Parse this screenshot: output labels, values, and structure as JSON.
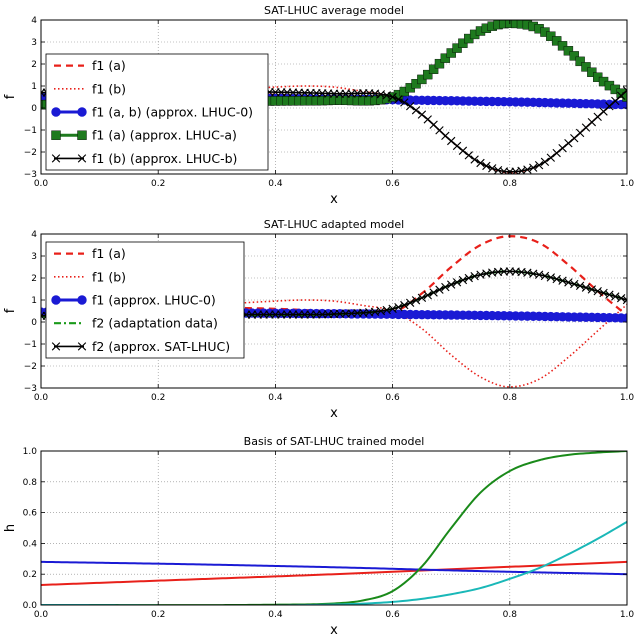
{
  "chart_data": [
    {
      "type": "line",
      "title": "SAT-LHUC average model",
      "xlabel": "x",
      "ylabel": "f",
      "xlim": [
        0,
        1
      ],
      "ylim": [
        -3,
        4
      ],
      "xticks": [
        "0.0",
        "0.2",
        "0.4",
        "0.6",
        "0.8",
        "1.0"
      ],
      "yticks": [
        "−3",
        "−2",
        "−1",
        "0",
        "1",
        "2",
        "3",
        "4"
      ],
      "grid": true,
      "legend_position": "upper-left",
      "series": [
        {
          "name": "f1 (a)",
          "color": "#e8201a",
          "style": "dashed",
          "x": [
            0,
            0.1,
            0.2,
            0.3,
            0.4,
            0.5,
            0.6,
            0.65,
            0.7,
            0.75,
            0.8,
            0.85,
            0.9,
            0.95,
            1.0
          ],
          "y": [
            0.4,
            0.5,
            0.6,
            0.65,
            0.6,
            0.5,
            0.5,
            1.3,
            2.5,
            3.5,
            3.9,
            3.6,
            2.6,
            1.4,
            0.3
          ]
        },
        {
          "name": "f1 (b)",
          "color": "#e8201a",
          "style": "dotted",
          "x": [
            0,
            0.1,
            0.2,
            0.3,
            0.4,
            0.45,
            0.5,
            0.55,
            0.6,
            0.65,
            0.7,
            0.75,
            0.8,
            0.85,
            0.9,
            0.95,
            1.0
          ],
          "y": [
            0.4,
            0.5,
            0.65,
            0.8,
            0.95,
            1.0,
            0.95,
            0.75,
            0.5,
            -0.3,
            -1.5,
            -2.5,
            -2.95,
            -2.6,
            -1.6,
            -0.4,
            0.8
          ]
        },
        {
          "name": "f1 (a, b) (approx. LHUC-0)",
          "color": "#1a1ad4",
          "style": "circle",
          "x": [
            0,
            0.2,
            0.4,
            0.6,
            0.8,
            1.0
          ],
          "y": [
            0.5,
            0.47,
            0.43,
            0.37,
            0.28,
            0.15
          ]
        },
        {
          "name": "f1 (a) (approx. LHUC-a)",
          "color": "#1e7a1e",
          "style": "square",
          "x": [
            0,
            0.1,
            0.2,
            0.3,
            0.4,
            0.5,
            0.6,
            0.65,
            0.7,
            0.75,
            0.8,
            0.85,
            0.9,
            0.95,
            1.0
          ],
          "y": [
            0.15,
            0.2,
            0.25,
            0.3,
            0.32,
            0.35,
            0.5,
            1.3,
            2.5,
            3.5,
            3.85,
            3.6,
            2.6,
            1.4,
            0.5
          ]
        },
        {
          "name": "f1 (b) (approx. LHUC-b)",
          "color": "#000000",
          "style": "cross",
          "x": [
            0,
            0.1,
            0.2,
            0.3,
            0.4,
            0.5,
            0.6,
            0.65,
            0.7,
            0.75,
            0.8,
            0.85,
            0.9,
            0.95,
            1.0
          ],
          "y": [
            0.7,
            0.72,
            0.75,
            0.75,
            0.72,
            0.65,
            0.5,
            -0.3,
            -1.5,
            -2.5,
            -2.9,
            -2.6,
            -1.6,
            -0.4,
            0.8
          ]
        }
      ]
    },
    {
      "type": "line",
      "title": "SAT-LHUC adapted model",
      "xlabel": "x",
      "ylabel": "f",
      "xlim": [
        0,
        1
      ],
      "ylim": [
        -3,
        4
      ],
      "xticks": [
        "0.0",
        "0.2",
        "0.4",
        "0.6",
        "0.8",
        "1.0"
      ],
      "yticks": [
        "−3",
        "−2",
        "−1",
        "0",
        "1",
        "2",
        "3",
        "4"
      ],
      "grid": true,
      "legend_position": "upper-left",
      "series": [
        {
          "name": "f1 (a)",
          "color": "#e8201a",
          "style": "dashed",
          "x": [
            0,
            0.1,
            0.2,
            0.3,
            0.4,
            0.5,
            0.6,
            0.65,
            0.7,
            0.75,
            0.8,
            0.85,
            0.9,
            0.95,
            1.0
          ],
          "y": [
            0.4,
            0.5,
            0.6,
            0.65,
            0.6,
            0.5,
            0.5,
            1.3,
            2.5,
            3.5,
            3.9,
            3.6,
            2.6,
            1.4,
            0.3
          ]
        },
        {
          "name": "f1 (b)",
          "color": "#e8201a",
          "style": "dotted",
          "x": [
            0,
            0.1,
            0.2,
            0.3,
            0.4,
            0.45,
            0.5,
            0.55,
            0.6,
            0.65,
            0.7,
            0.75,
            0.8,
            0.85,
            0.9,
            0.95,
            1.0
          ],
          "y": [
            0.4,
            0.5,
            0.65,
            0.8,
            0.95,
            1.0,
            0.95,
            0.75,
            0.5,
            -0.3,
            -1.5,
            -2.5,
            -2.95,
            -2.6,
            -1.6,
            -0.4,
            0.8
          ]
        },
        {
          "name": "f1 (approx. LHUC-0)",
          "color": "#1a1ad4",
          "style": "circle",
          "x": [
            0,
            0.2,
            0.4,
            0.6,
            0.8,
            1.0
          ],
          "y": [
            0.45,
            0.43,
            0.4,
            0.35,
            0.28,
            0.18
          ]
        },
        {
          "name": "f2 (adaptation data)",
          "color": "#1a9a1a",
          "style": "dashdot",
          "x": [
            0,
            0.1,
            0.2,
            0.3,
            0.4,
            0.5,
            0.6,
            0.65,
            0.7,
            0.75,
            0.8,
            0.85,
            0.9,
            0.95,
            1.0
          ],
          "y": [
            0.25,
            0.27,
            0.3,
            0.3,
            0.32,
            0.35,
            0.6,
            1.1,
            1.7,
            2.15,
            2.3,
            2.15,
            1.8,
            1.4,
            1.0
          ]
        },
        {
          "name": "f2 (approx. SAT-LHUC)",
          "color": "#000000",
          "style": "cross",
          "x": [
            0,
            0.1,
            0.2,
            0.3,
            0.4,
            0.5,
            0.6,
            0.65,
            0.7,
            0.75,
            0.8,
            0.85,
            0.9,
            0.95,
            1.0
          ],
          "y": [
            0.28,
            0.3,
            0.32,
            0.33,
            0.34,
            0.36,
            0.6,
            1.1,
            1.7,
            2.15,
            2.3,
            2.15,
            1.8,
            1.4,
            1.0
          ]
        }
      ]
    },
    {
      "type": "line",
      "title": "Basis of SAT-LHUC trained model",
      "xlabel": "x",
      "ylabel": "h",
      "xlim": [
        0,
        1
      ],
      "ylim": [
        0,
        1
      ],
      "xticks": [
        "0.0",
        "0.2",
        "0.4",
        "0.6",
        "0.8",
        "1.0"
      ],
      "yticks": [
        "0.0",
        "0.2",
        "0.4",
        "0.6",
        "0.8",
        "1.0"
      ],
      "grid": true,
      "series": [
        {
          "color": "#e8201a",
          "style": "solid",
          "x": [
            0,
            0.25,
            0.5,
            0.75,
            1.0
          ],
          "y": [
            0.13,
            0.165,
            0.2,
            0.24,
            0.28
          ]
        },
        {
          "color": "#1a1ad4",
          "style": "solid",
          "x": [
            0,
            0.25,
            0.5,
            0.75,
            1.0
          ],
          "y": [
            0.28,
            0.265,
            0.245,
            0.22,
            0.2
          ]
        },
        {
          "color": "#1a8a1a",
          "style": "solid",
          "x": [
            0,
            0.4,
            0.5,
            0.55,
            0.6,
            0.65,
            0.7,
            0.75,
            0.8,
            0.85,
            0.9,
            0.95,
            1.0
          ],
          "y": [
            0,
            0.002,
            0.01,
            0.03,
            0.09,
            0.25,
            0.5,
            0.73,
            0.87,
            0.94,
            0.975,
            0.99,
            1.0
          ]
        },
        {
          "color": "#1ab8b8",
          "style": "solid",
          "x": [
            0,
            0.5,
            0.6,
            0.65,
            0.7,
            0.75,
            0.8,
            0.85,
            0.9,
            0.95,
            1.0
          ],
          "y": [
            0,
            0.003,
            0.02,
            0.04,
            0.07,
            0.11,
            0.17,
            0.24,
            0.33,
            0.43,
            0.54
          ]
        }
      ]
    }
  ]
}
